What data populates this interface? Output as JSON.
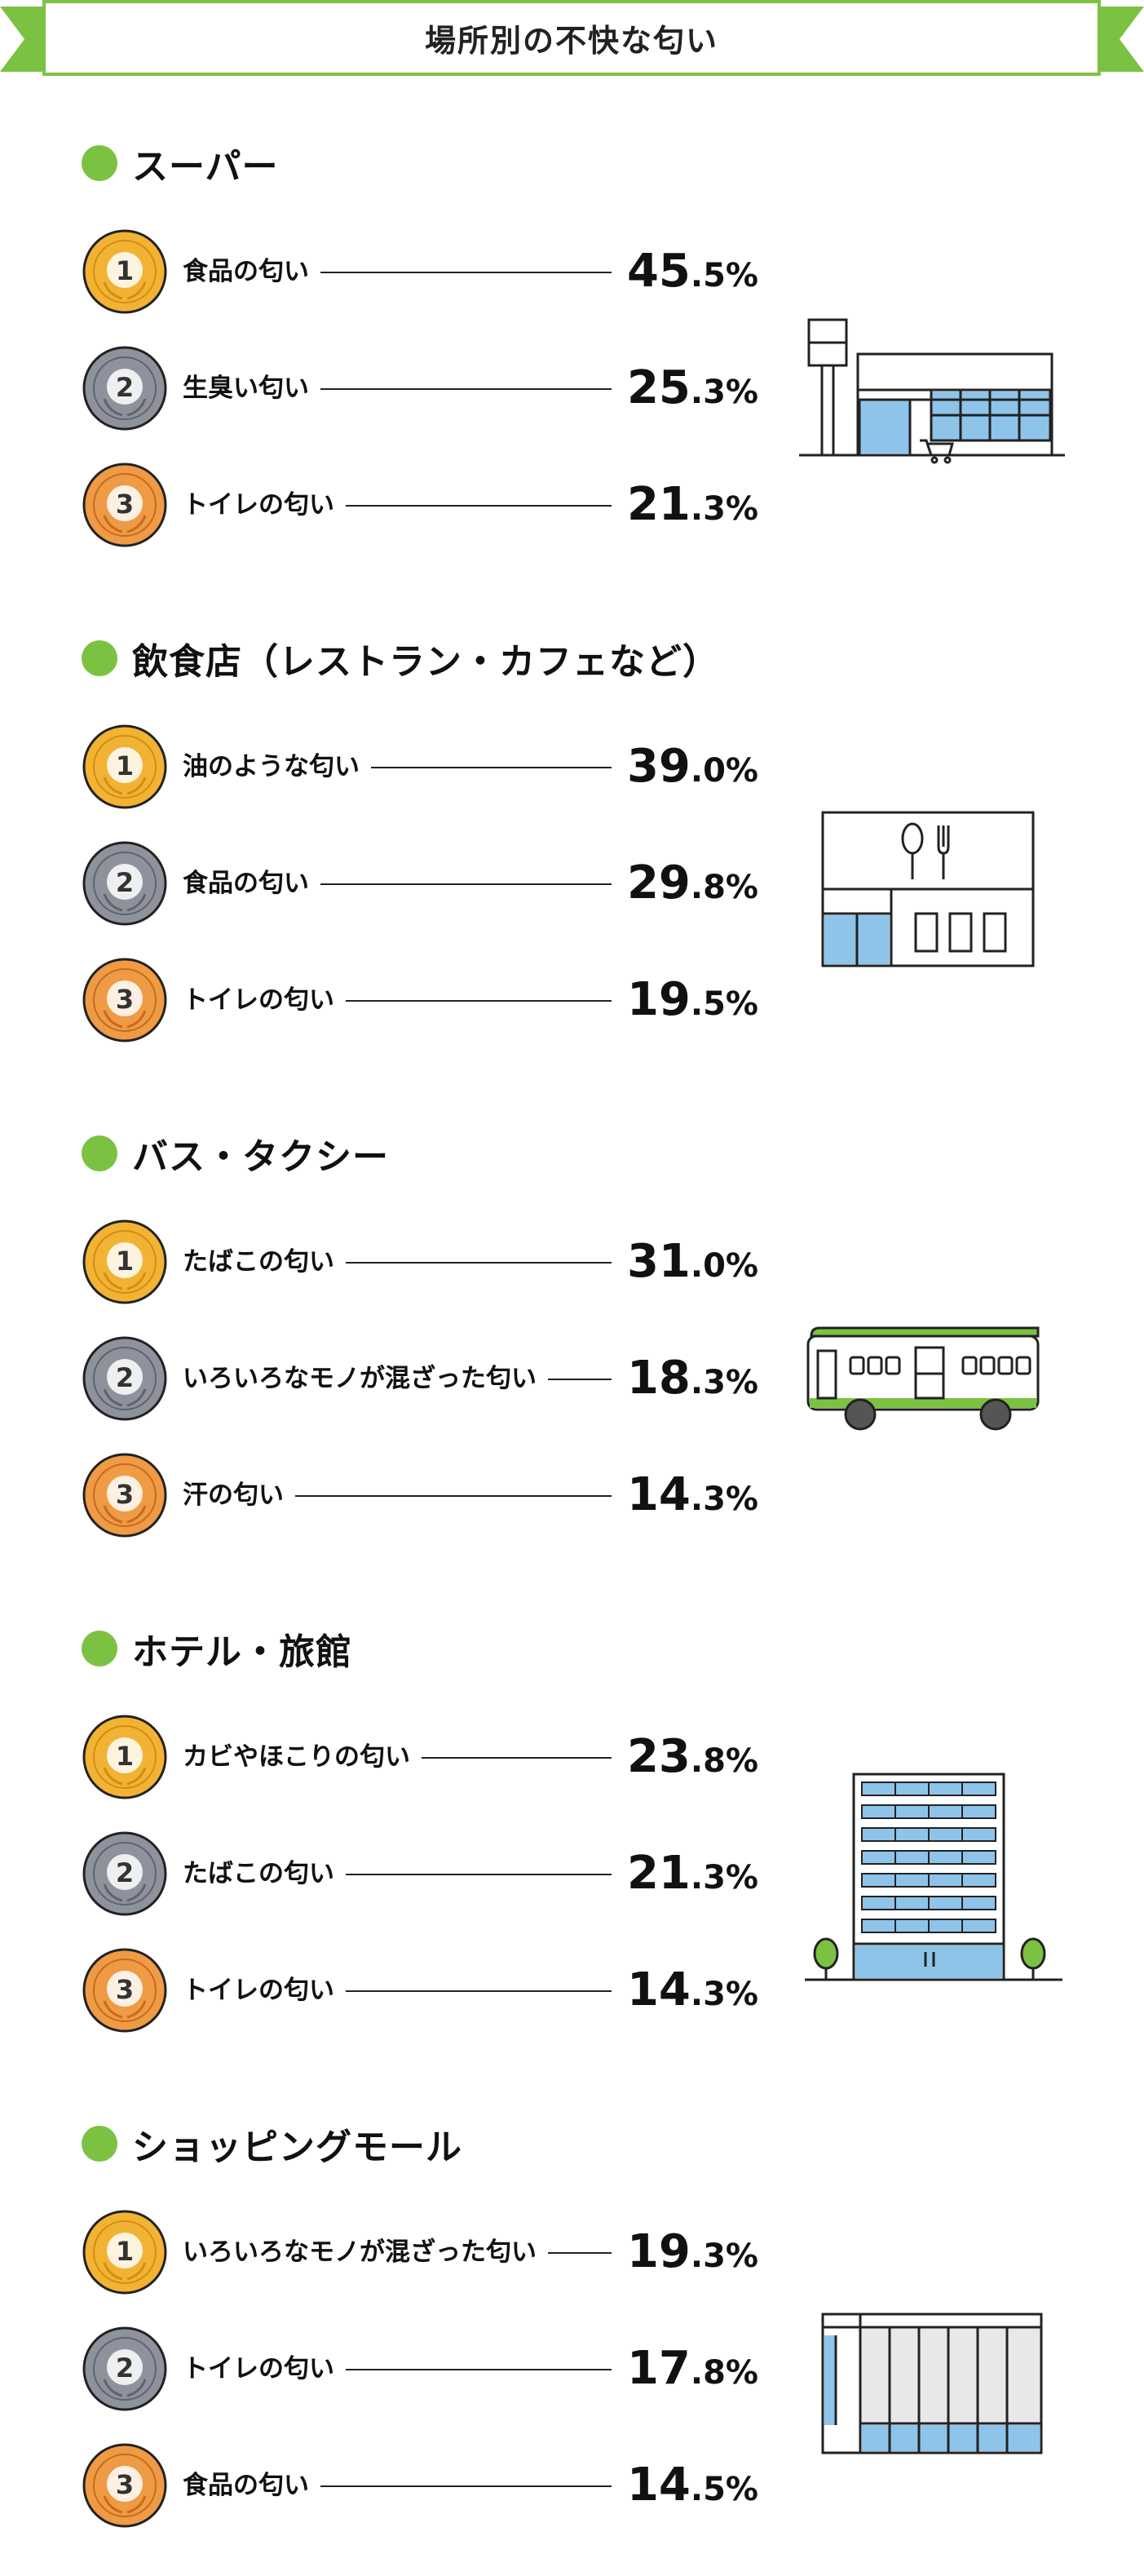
{
  "title": "場所別の不快な匂い",
  "colors": {
    "accent_green": "#7cc242",
    "gold": "#f2b233",
    "silver": "#8e929c",
    "bronze": "#ef9a45",
    "window_blue": "#8fc4ea"
  },
  "medal_labels": [
    "1",
    "2",
    "3"
  ],
  "sections": [
    {
      "title": "スーパー",
      "icon": "supermarket-icon",
      "items": [
        {
          "label": "食品の匂い",
          "pct_int": "45",
          "pct_dec": ".5%"
        },
        {
          "label": "生臭い匂い",
          "pct_int": "25",
          "pct_dec": ".3%"
        },
        {
          "label": "トイレの匂い",
          "pct_int": "21",
          "pct_dec": ".3%"
        }
      ]
    },
    {
      "title": "飲食店（レストラン・カフェなど）",
      "icon": "restaurant-icon",
      "items": [
        {
          "label": "油のような匂い",
          "pct_int": "39",
          "pct_dec": ".0%"
        },
        {
          "label": "食品の匂い",
          "pct_int": "29",
          "pct_dec": ".8%"
        },
        {
          "label": "トイレの匂い",
          "pct_int": "19",
          "pct_dec": ".5%"
        }
      ]
    },
    {
      "title": "バス・タクシー",
      "icon": "bus-icon",
      "items": [
        {
          "label": "たばこの匂い",
          "pct_int": "31",
          "pct_dec": ".0%"
        },
        {
          "label": "いろいろなモノが混ざった匂い",
          "pct_int": "18",
          "pct_dec": ".3%"
        },
        {
          "label": "汗の匂い",
          "pct_int": "14",
          "pct_dec": ".3%"
        }
      ]
    },
    {
      "title": "ホテル・旅館",
      "icon": "hotel-icon",
      "items": [
        {
          "label": "カビやほこりの匂い",
          "pct_int": "23",
          "pct_dec": ".8%"
        },
        {
          "label": "たばこの匂い",
          "pct_int": "21",
          "pct_dec": ".3%"
        },
        {
          "label": "トイレの匂い",
          "pct_int": "14",
          "pct_dec": ".3%"
        }
      ]
    },
    {
      "title": "ショッピングモール",
      "icon": "shopping-mall-icon",
      "items": [
        {
          "label": "いろいろなモノが混ざった匂い",
          "pct_int": "19",
          "pct_dec": ".3%"
        },
        {
          "label": "トイレの匂い",
          "pct_int": "17",
          "pct_dec": ".8%"
        },
        {
          "label": "食品の匂い",
          "pct_int": "14",
          "pct_dec": ".5%"
        }
      ]
    }
  ]
}
